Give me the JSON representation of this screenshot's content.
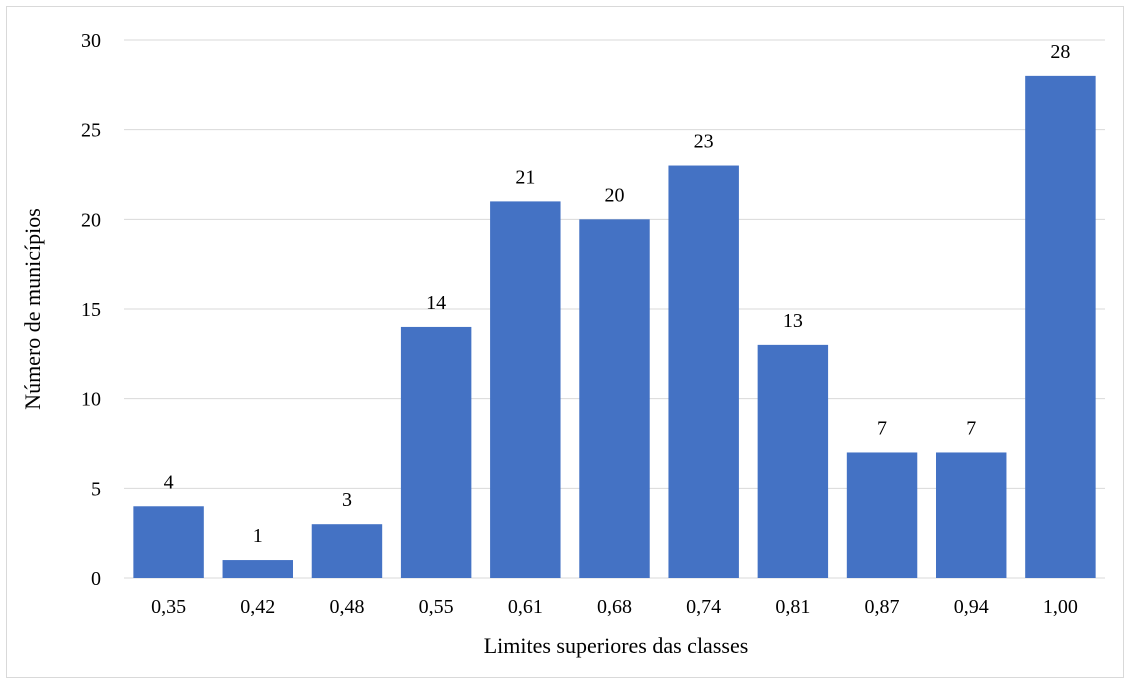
{
  "chart_data": {
    "type": "bar",
    "categories": [
      "0,35",
      "0,42",
      "0,48",
      "0,55",
      "0,61",
      "0,68",
      "0,74",
      "0,81",
      "0,87",
      "0,94",
      "1,00"
    ],
    "series": [
      {
        "values": [
          4,
          1,
          3,
          14,
          21,
          20,
          23,
          13,
          7,
          7,
          28
        ]
      }
    ],
    "xlabel": "Limites superiores das classes",
    "ylabel": "Número de municípios",
    "ylim": [
      0,
      30
    ],
    "yticks": [
      "0",
      "5",
      "10",
      "15",
      "20",
      "25",
      "30"
    ],
    "grid": true,
    "legend": "none",
    "bar_color": "#4472C4",
    "grid_color": "#d9d9d9"
  }
}
